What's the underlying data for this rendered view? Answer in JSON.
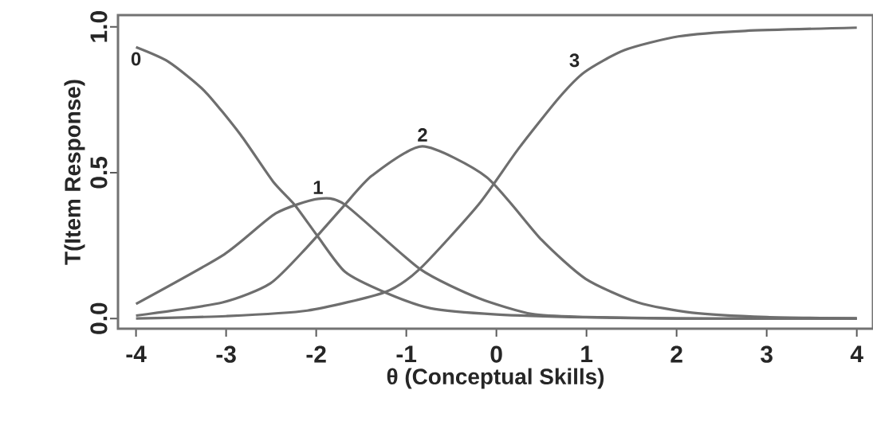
{
  "chart_data": {
    "type": "line",
    "xlabel": "θ (Conceptual Skills)",
    "ylabel": "T(Item Response)",
    "xlim": [
      -4.2,
      4.18
    ],
    "ylim": [
      -0.035,
      1.04
    ],
    "xticks": [
      -4,
      -3,
      -2,
      -1,
      0,
      1,
      2,
      3,
      4
    ],
    "yticks": [
      {
        "value": 0,
        "label": "0.0"
      },
      {
        "value": 0.5,
        "label": "0.5"
      },
      {
        "value": 1,
        "label": "1.0"
      }
    ],
    "line_style": "solid",
    "marker": "none",
    "series": [
      {
        "name": "0",
        "color": "#6e6e6e",
        "x": [
          -4,
          -3.64,
          -3.24,
          -2.84,
          -2.48,
          -2.24,
          -1.98,
          -1.68,
          -1.24,
          -0.73,
          0,
          1,
          2,
          3,
          4
        ],
        "values": [
          0.93,
          0.88,
          0.78,
          0.63,
          0.47,
          0.39,
          0.28,
          0.16,
          0.09,
          0.035,
          0.014,
          0.004,
          0,
          0,
          0
        ]
      },
      {
        "name": "1",
        "color": "#6e6e6e",
        "x": [
          -4,
          -3.02,
          -2.45,
          -1.98,
          -1.68,
          -0.85,
          -0.2,
          0.4,
          1,
          2,
          3,
          4
        ],
        "values": [
          0.05,
          0.22,
          0.36,
          0.41,
          0.39,
          0.17,
          0.07,
          0.015,
          0.005,
          0,
          0,
          0
        ]
      },
      {
        "name": "2",
        "color": "#6e6e6e",
        "x": [
          -4,
          -3.04,
          -2.51,
          -2.1,
          -1.71,
          -1.38,
          -0.82,
          -0.11,
          0.5,
          0.99,
          1.57,
          2.17,
          3,
          4
        ],
        "values": [
          0.01,
          0.055,
          0.12,
          0.245,
          0.38,
          0.49,
          0.59,
          0.485,
          0.27,
          0.136,
          0.055,
          0.02,
          0.005,
          0
        ]
      },
      {
        "name": "3",
        "color": "#6e6e6e",
        "x": [
          -4,
          -3,
          -2.1,
          -1.24,
          -0.85,
          -0.2,
          0.24,
          0.69,
          0.98,
          1.42,
          2.02,
          2.76,
          4
        ],
        "values": [
          0,
          0.008,
          0.027,
          0.09,
          0.17,
          0.39,
          0.58,
          0.755,
          0.845,
          0.92,
          0.967,
          0.986,
          0.997
        ]
      }
    ]
  }
}
